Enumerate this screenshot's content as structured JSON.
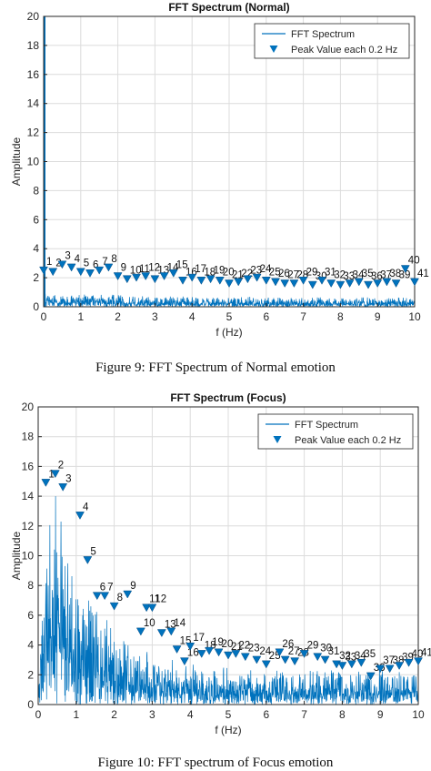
{
  "charts": [
    {
      "title": "FFT Spectrum (Normal)",
      "xlabel": "f (Hz)",
      "ylabel": "Amplitude",
      "legend": {
        "spectrum": "FFT Spectrum",
        "peaks": "Peak Value each 0.2 Hz"
      },
      "caption": "Figure 9: FFT Spectrum of Normal emotion"
    },
    {
      "title": "FFT Spectrum (Focus)",
      "xlabel": "f (Hz)",
      "ylabel": "Amplitude",
      "legend": {
        "spectrum": "FFT Spectrum",
        "peaks": "Peak Value each 0.2 Hz"
      },
      "caption": "Figure 10: FFT spectrum of Focus emotion"
    }
  ],
  "chart_data": [
    {
      "type": "line",
      "title": "FFT Spectrum (Normal)",
      "xlabel": "f (Hz)",
      "ylabel": "Amplitude",
      "xlim": [
        0,
        10
      ],
      "ylim": [
        0,
        20
      ],
      "xticks": [
        0,
        1,
        2,
        3,
        4,
        5,
        6,
        7,
        8,
        9,
        10
      ],
      "yticks": [
        0,
        2,
        4,
        6,
        8,
        10,
        12,
        14,
        16,
        18,
        20
      ],
      "grid": true,
      "legend_position": "top-right",
      "colors": {
        "spectrum": "#0072BD",
        "peaks": "#0072BD"
      },
      "series": [
        {
          "name": "FFT Spectrum",
          "style": "dense-line",
          "dc_spike": 20,
          "noise_base": 0.6,
          "noise_floor": 0.05
        },
        {
          "name": "Peak Value each 0.2 Hz",
          "style": "markers",
          "labels": [
            1,
            2,
            3,
            4,
            5,
            6,
            7,
            8,
            9,
            10,
            11,
            12,
            13,
            14,
            15,
            16,
            17,
            18,
            19,
            20,
            21,
            22,
            23,
            24,
            25,
            26,
            27,
            28,
            29,
            30,
            31,
            32,
            33,
            34,
            35,
            36,
            37,
            38,
            39,
            40,
            41
          ],
          "x": [
            0,
            0.25,
            0.5,
            0.75,
            1.0,
            1.25,
            1.5,
            1.75,
            2.0,
            2.25,
            2.5,
            2.75,
            3.0,
            3.25,
            3.5,
            3.75,
            4.0,
            4.25,
            4.5,
            4.75,
            5.0,
            5.25,
            5.5,
            5.75,
            6.0,
            6.25,
            6.5,
            6.75,
            7.0,
            7.25,
            7.5,
            7.75,
            8.0,
            8.25,
            8.5,
            8.75,
            9.0,
            9.25,
            9.5,
            9.75,
            10.0
          ],
          "y": [
            2.5,
            2.4,
            2.9,
            2.7,
            2.4,
            2.3,
            2.5,
            2.7,
            2.1,
            1.9,
            2.0,
            2.1,
            1.9,
            2.1,
            2.3,
            1.8,
            2.0,
            1.8,
            1.9,
            1.8,
            1.6,
            1.7,
            1.9,
            2.0,
            1.8,
            1.7,
            1.6,
            1.6,
            1.8,
            1.5,
            1.8,
            1.6,
            1.5,
            1.6,
            1.7,
            1.5,
            1.6,
            1.7,
            1.6,
            2.6,
            1.7
          ]
        }
      ]
    },
    {
      "type": "line",
      "title": "FFT Spectrum (Focus)",
      "xlabel": "f (Hz)",
      "ylabel": "Amplitude",
      "xlim": [
        0,
        10
      ],
      "ylim": [
        0,
        20
      ],
      "xticks": [
        0,
        1,
        2,
        3,
        4,
        5,
        6,
        7,
        8,
        9,
        10
      ],
      "yticks": [
        0,
        2,
        4,
        6,
        8,
        10,
        12,
        14,
        16,
        18,
        20
      ],
      "grid": true,
      "legend_position": "top-right",
      "colors": {
        "spectrum": "#0072BD",
        "peaks": "#0072BD"
      },
      "series": [
        {
          "name": "FFT Spectrum",
          "style": "dense-line",
          "dc_spike": 0,
          "noise_base": 2.2,
          "noise_peak": 14.5,
          "noise_decay": 1.1
        },
        {
          "name": "Peak Value each 0.2 Hz",
          "style": "markers",
          "labels": [
            1,
            2,
            3,
            4,
            5,
            6,
            7,
            8,
            9,
            10,
            11,
            12,
            13,
            14,
            15,
            16,
            17,
            18,
            19,
            20,
            21,
            22,
            23,
            24,
            25,
            26,
            27,
            28,
            29,
            30,
            31,
            32,
            33,
            34,
            35,
            36,
            37,
            38,
            39,
            40,
            41
          ],
          "x": [
            0.2,
            0.45,
            0.65,
            1.1,
            1.3,
            1.55,
            1.75,
            2.0,
            2.35,
            2.7,
            2.85,
            3.0,
            3.25,
            3.5,
            3.65,
            3.85,
            4.0,
            4.3,
            4.5,
            4.75,
            5.0,
            5.2,
            5.45,
            5.75,
            6.0,
            6.35,
            6.5,
            6.75,
            7.0,
            7.35,
            7.55,
            7.85,
            8.0,
            8.25,
            8.5,
            8.75,
            9.0,
            9.25,
            9.5,
            9.75,
            10.0
          ],
          "y": [
            14.9,
            15.5,
            14.6,
            12.7,
            9.7,
            7.3,
            7.3,
            6.6,
            7.4,
            4.9,
            6.5,
            6.5,
            4.8,
            4.9,
            3.7,
            2.9,
            3.9,
            3.4,
            3.6,
            3.5,
            3.3,
            3.4,
            3.2,
            3.0,
            2.7,
            3.5,
            3.0,
            2.9,
            3.4,
            3.2,
            3.0,
            2.7,
            2.6,
            2.7,
            2.8,
            1.9,
            2.4,
            2.4,
            2.6,
            2.8,
            2.9
          ]
        }
      ]
    }
  ]
}
